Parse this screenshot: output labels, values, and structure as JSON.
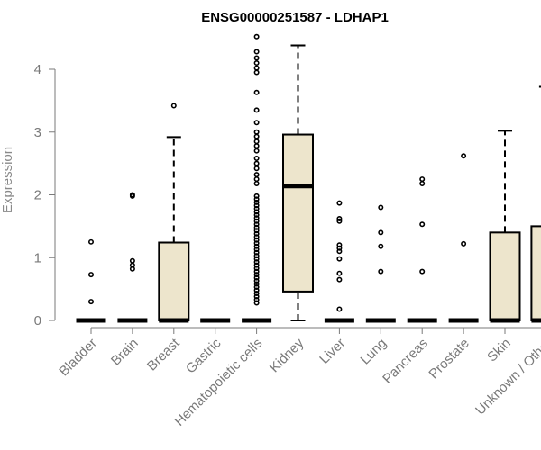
{
  "chart_data": {
    "type": "box",
    "title": "ENSG00000251587 - LDHAP1",
    "xlabel": "",
    "ylabel": "Expression",
    "ylim": [
      0,
      4.5
    ],
    "yticks": [
      0,
      1,
      2,
      3,
      4
    ],
    "box_fill": "#ede5cc",
    "categories": [
      "Bladder",
      "Brain",
      "Breast",
      "Gastric",
      "Hematopoietic cells",
      "Kidney",
      "Liver",
      "Lung",
      "Pancreas",
      "Prostate",
      "Skin",
      "Unknown / Other"
    ],
    "boxes": [
      {
        "q1": 0,
        "median": 0,
        "q3": 0,
        "whisker_low": 0,
        "whisker_high": 0,
        "outliers": [
          0.3,
          0.73,
          1.25
        ]
      },
      {
        "q1": 0,
        "median": 0,
        "q3": 0,
        "whisker_low": 0,
        "whisker_high": 0,
        "outliers": [
          0.82,
          0.88,
          0.95,
          1.98,
          2.0
        ]
      },
      {
        "q1": 0,
        "median": 0,
        "q3": 1.24,
        "whisker_low": 0,
        "whisker_high": 2.92,
        "outliers": [
          3.42
        ]
      },
      {
        "q1": 0,
        "median": 0,
        "q3": 0,
        "whisker_low": 0,
        "whisker_high": 0,
        "outliers": []
      },
      {
        "q1": 0,
        "median": 0,
        "q3": 0,
        "whisker_low": 0,
        "whisker_high": 0,
        "outliers": [
          0.28,
          0.33,
          0.38,
          0.43,
          0.48,
          0.53,
          0.58,
          0.63,
          0.68,
          0.73,
          0.78,
          0.83,
          0.88,
          0.93,
          0.98,
          1.03,
          1.08,
          1.13,
          1.18,
          1.23,
          1.28,
          1.33,
          1.38,
          1.43,
          1.48,
          1.53,
          1.58,
          1.63,
          1.68,
          1.73,
          1.78,
          1.83,
          1.88,
          1.93,
          1.98,
          2.18,
          2.25,
          2.32,
          2.42,
          2.5,
          2.58,
          2.7,
          2.78,
          2.85,
          2.93,
          3.0,
          3.15,
          3.35,
          3.63,
          3.95,
          4.02,
          4.1,
          4.18,
          4.28,
          4.52
        ]
      },
      {
        "q1": 0.46,
        "median": 2.14,
        "q3": 2.96,
        "whisker_low": 0,
        "whisker_high": 4.38,
        "outliers": []
      },
      {
        "q1": 0,
        "median": 0,
        "q3": 0,
        "whisker_low": 0,
        "whisker_high": 0,
        "outliers": [
          0.18,
          0.65,
          0.75,
          0.98,
          1.1,
          1.15,
          1.2,
          1.58,
          1.62,
          1.87
        ]
      },
      {
        "q1": 0,
        "median": 0,
        "q3": 0,
        "whisker_low": 0,
        "whisker_high": 0,
        "outliers": [
          0.78,
          1.18,
          1.4,
          1.8
        ]
      },
      {
        "q1": 0,
        "median": 0,
        "q3": 0,
        "whisker_low": 0,
        "whisker_high": 0,
        "outliers": [
          0.78,
          1.53,
          2.18,
          2.25
        ]
      },
      {
        "q1": 0,
        "median": 0,
        "q3": 0,
        "whisker_low": 0,
        "whisker_high": 0,
        "outliers": [
          1.22,
          2.62
        ]
      },
      {
        "q1": 0,
        "median": 0,
        "q3": 1.4,
        "whisker_low": 0,
        "whisker_high": 3.02,
        "outliers": []
      },
      {
        "q1": 0,
        "median": 0,
        "q3": 1.5,
        "whisker_low": 0,
        "whisker_high": 3.72,
        "outliers": []
      }
    ]
  }
}
